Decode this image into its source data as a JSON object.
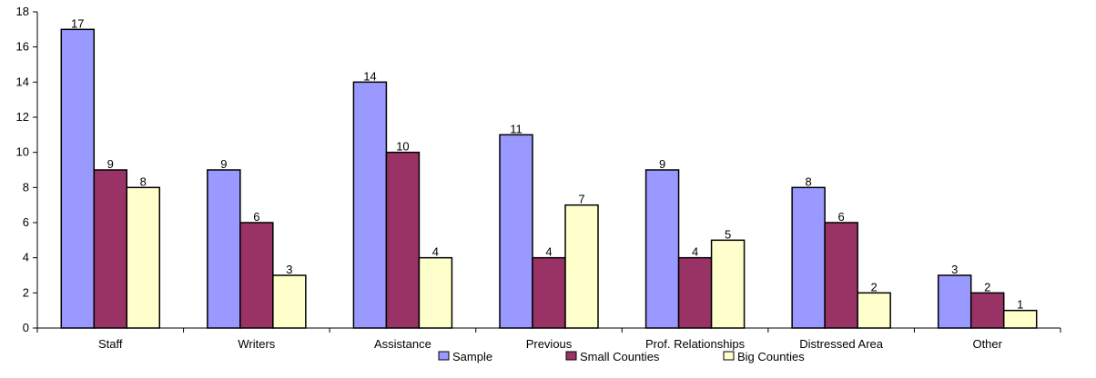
{
  "chart_data": {
    "type": "bar",
    "title": "",
    "xlabel": "",
    "ylabel": "",
    "ylim": [
      0,
      18
    ],
    "yticks": [
      0,
      2,
      4,
      6,
      8,
      10,
      12,
      14,
      16,
      18
    ],
    "grid": false,
    "legend_position": "bottom",
    "categories": [
      "Staff",
      "Writers",
      "Assistance",
      "Previous",
      "Prof. Relationships",
      "Distressed Area",
      "Other"
    ],
    "series": [
      {
        "name": "Sample",
        "color": "#9999ff",
        "values": [
          17,
          9,
          14,
          11,
          9,
          8,
          3
        ]
      },
      {
        "name": "Small Counties",
        "color": "#993366",
        "values": [
          9,
          6,
          10,
          4,
          4,
          6,
          2
        ]
      },
      {
        "name": "Big Counties",
        "color": "#ffffcc",
        "values": [
          8,
          3,
          4,
          7,
          5,
          2,
          1
        ]
      }
    ]
  }
}
